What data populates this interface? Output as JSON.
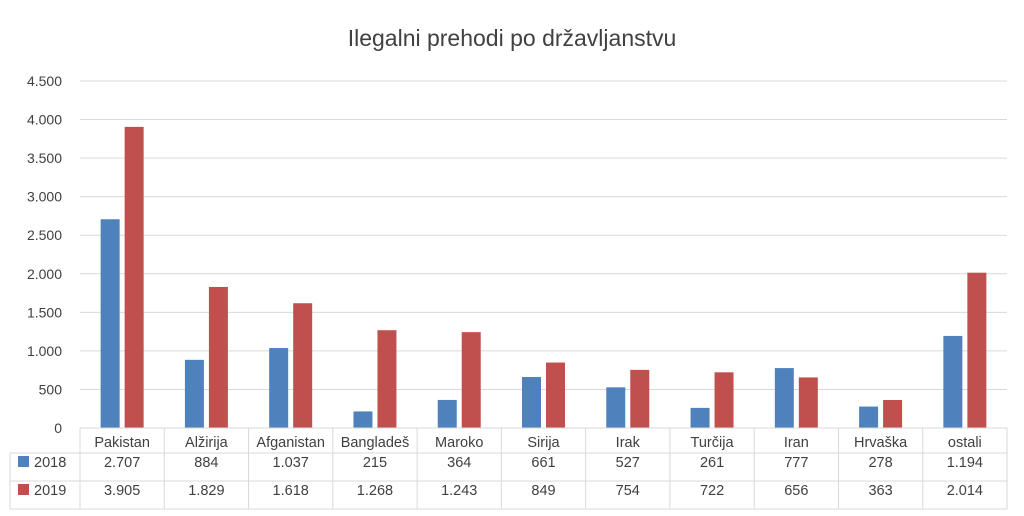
{
  "chart_data": {
    "type": "bar",
    "title": "Ilegalni prehodi po državljanstvu",
    "categories": [
      "Pakistan",
      "Alžirija",
      "Afganistan",
      "Bangladeš",
      "Maroko",
      "Sirija",
      "Irak",
      "Turčija",
      "Iran",
      "Hrvaška",
      "ostali"
    ],
    "series": [
      {
        "name": "2018",
        "color": "#4F81BD",
        "values": [
          2707,
          884,
          1037,
          215,
          364,
          661,
          527,
          261,
          777,
          278,
          1194
        ],
        "labels": [
          "2.707",
          "884",
          "1.037",
          "215",
          "364",
          "661",
          "527",
          "261",
          "777",
          "278",
          "1.194"
        ]
      },
      {
        "name": "2019",
        "color": "#C0504D",
        "values": [
          3905,
          1829,
          1618,
          1268,
          1243,
          849,
          754,
          722,
          656,
          363,
          2014
        ],
        "labels": [
          "3.905",
          "1.829",
          "1.618",
          "1.268",
          "1.243",
          "849",
          "754",
          "722",
          "656",
          "363",
          "2.014"
        ]
      }
    ],
    "ylim": [
      0,
      4500
    ],
    "yticks": [
      0,
      500,
      1000,
      1500,
      2000,
      2500,
      3000,
      3500,
      4000,
      4500
    ],
    "ytick_labels": [
      "0",
      "500",
      "1.000",
      "1.500",
      "2.000",
      "2.500",
      "3.000",
      "3.500",
      "4.000",
      "4.500"
    ],
    "grid": true,
    "data_table": true,
    "legend": "data-table"
  }
}
